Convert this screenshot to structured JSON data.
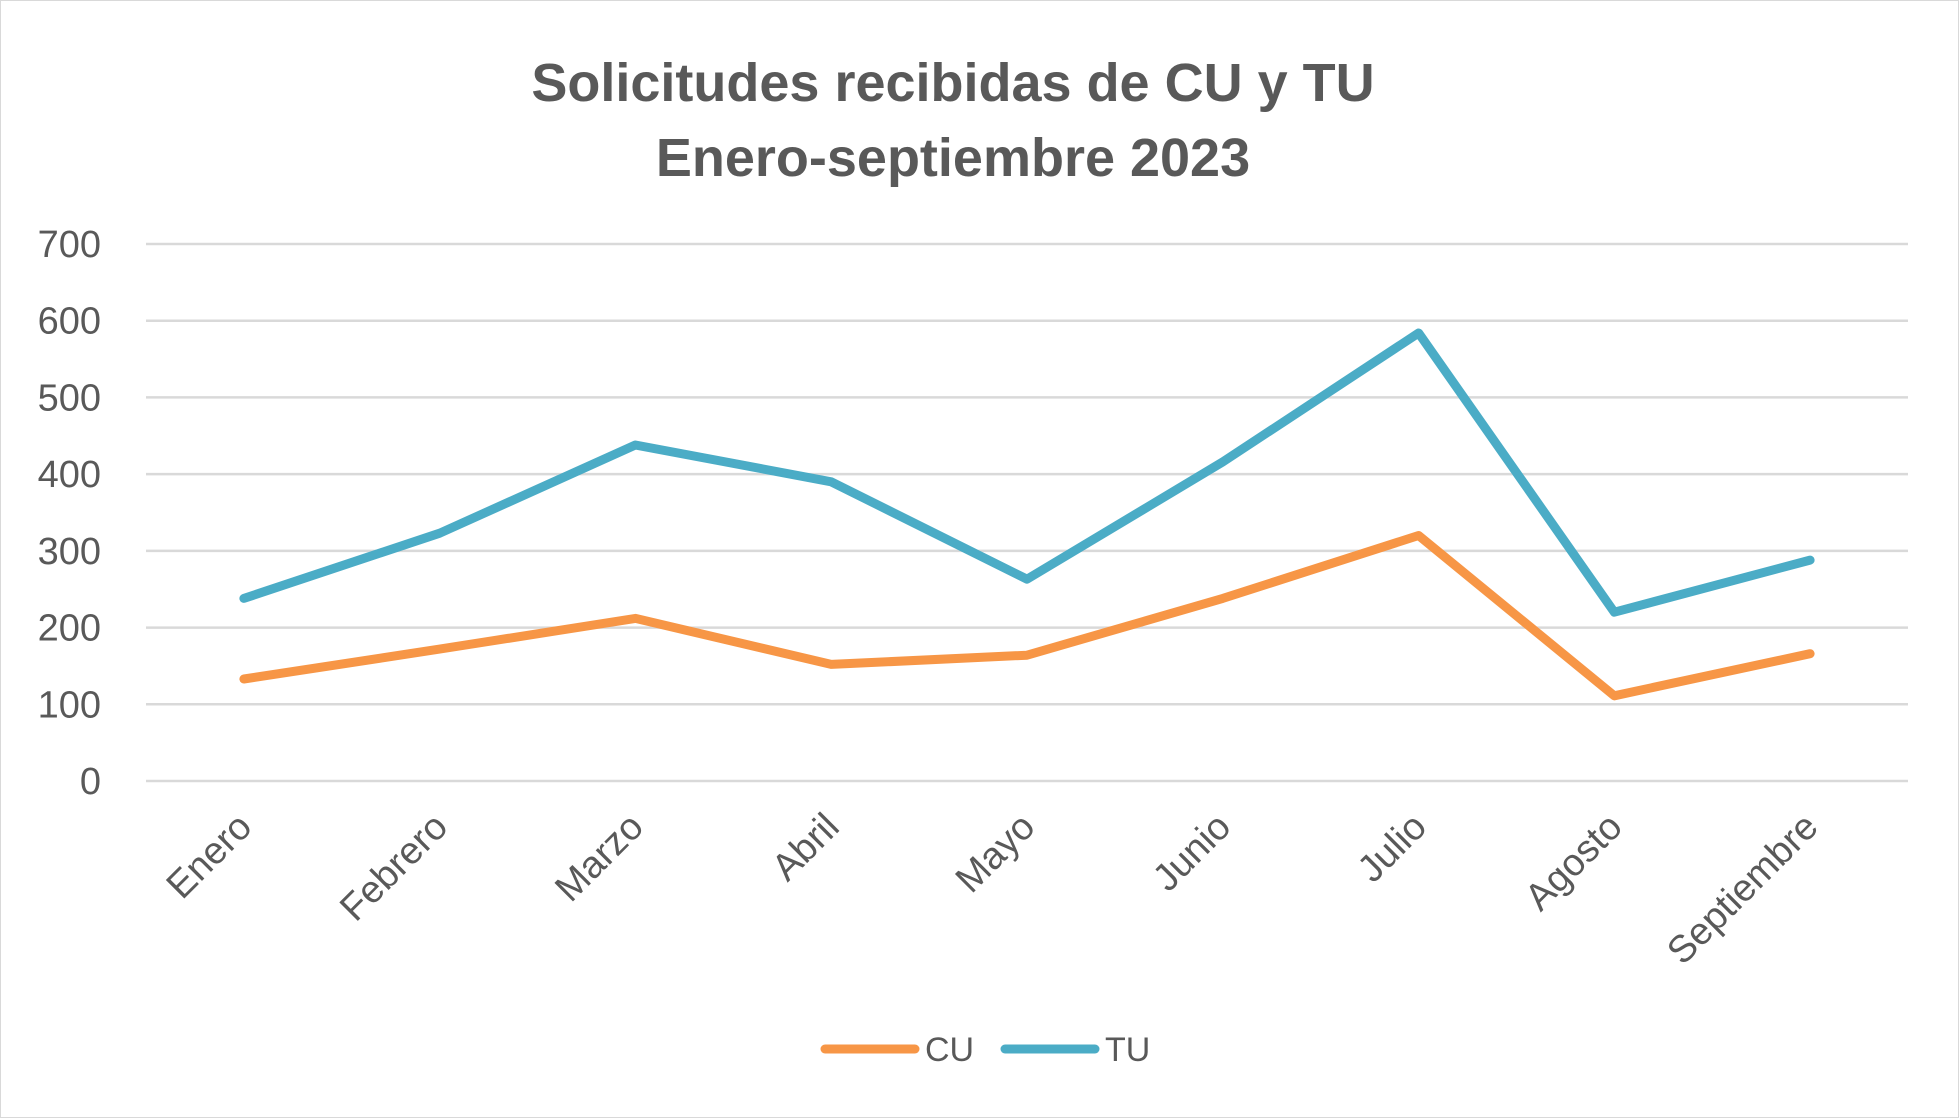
{
  "chart_data": {
    "type": "line",
    "title": [
      "Solicitudes recibidas de CU y TU",
      "Enero-septiembre 2023"
    ],
    "xlabel": "",
    "ylabel": "",
    "categories": [
      "Enero",
      "Febrero",
      "Marzo",
      "Abril",
      "Mayo",
      "Junio",
      "Julio",
      "Agosto",
      "Septiembre"
    ],
    "yticks": [
      "0",
      "100",
      "200",
      "300",
      "400",
      "500",
      "600",
      "700"
    ],
    "ylim": [
      0,
      700
    ],
    "grid": true,
    "legend_position": "bottom",
    "series": [
      {
        "name": "CU",
        "color": "#f79646",
        "values": [
          133,
          172,
          212,
          152,
          164,
          238,
          320,
          111,
          166
        ]
      },
      {
        "name": "TU",
        "color": "#4bacc6",
        "values": [
          238,
          323,
          438,
          390,
          263,
          416,
          584,
          220,
          288
        ]
      }
    ]
  }
}
